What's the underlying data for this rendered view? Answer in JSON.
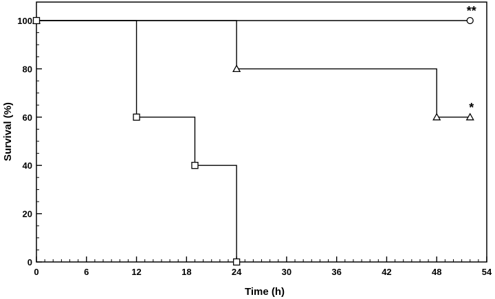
{
  "chart_data": {
    "type": "line",
    "subtype": "step (Kaplan-Meier survival)",
    "title": "",
    "xlabel": "Time (h)",
    "ylabel": "Survival (%)",
    "xlim": [
      0,
      54
    ],
    "ylim": [
      0,
      100
    ],
    "x_ticks": [
      0,
      6,
      12,
      18,
      24,
      30,
      36,
      42,
      48,
      54
    ],
    "y_ticks": [
      0,
      20,
      40,
      60,
      80,
      100
    ],
    "x_minor_tick_step": 1,
    "y_minor_tick_step": 5,
    "grid": false,
    "legend": "none",
    "series": [
      {
        "marker": "circle",
        "points": [
          [
            0,
            100
          ],
          [
            52,
            100
          ]
        ],
        "annotation": "**"
      },
      {
        "marker": "triangle",
        "points": [
          [
            0,
            100
          ],
          [
            24,
            80
          ],
          [
            48,
            60
          ],
          [
            52,
            60
          ]
        ],
        "annotation": "*"
      },
      {
        "marker": "square",
        "points": [
          [
            0,
            100
          ],
          [
            12,
            60
          ],
          [
            19,
            40
          ],
          [
            24,
            0
          ]
        ],
        "annotation": ""
      }
    ]
  }
}
